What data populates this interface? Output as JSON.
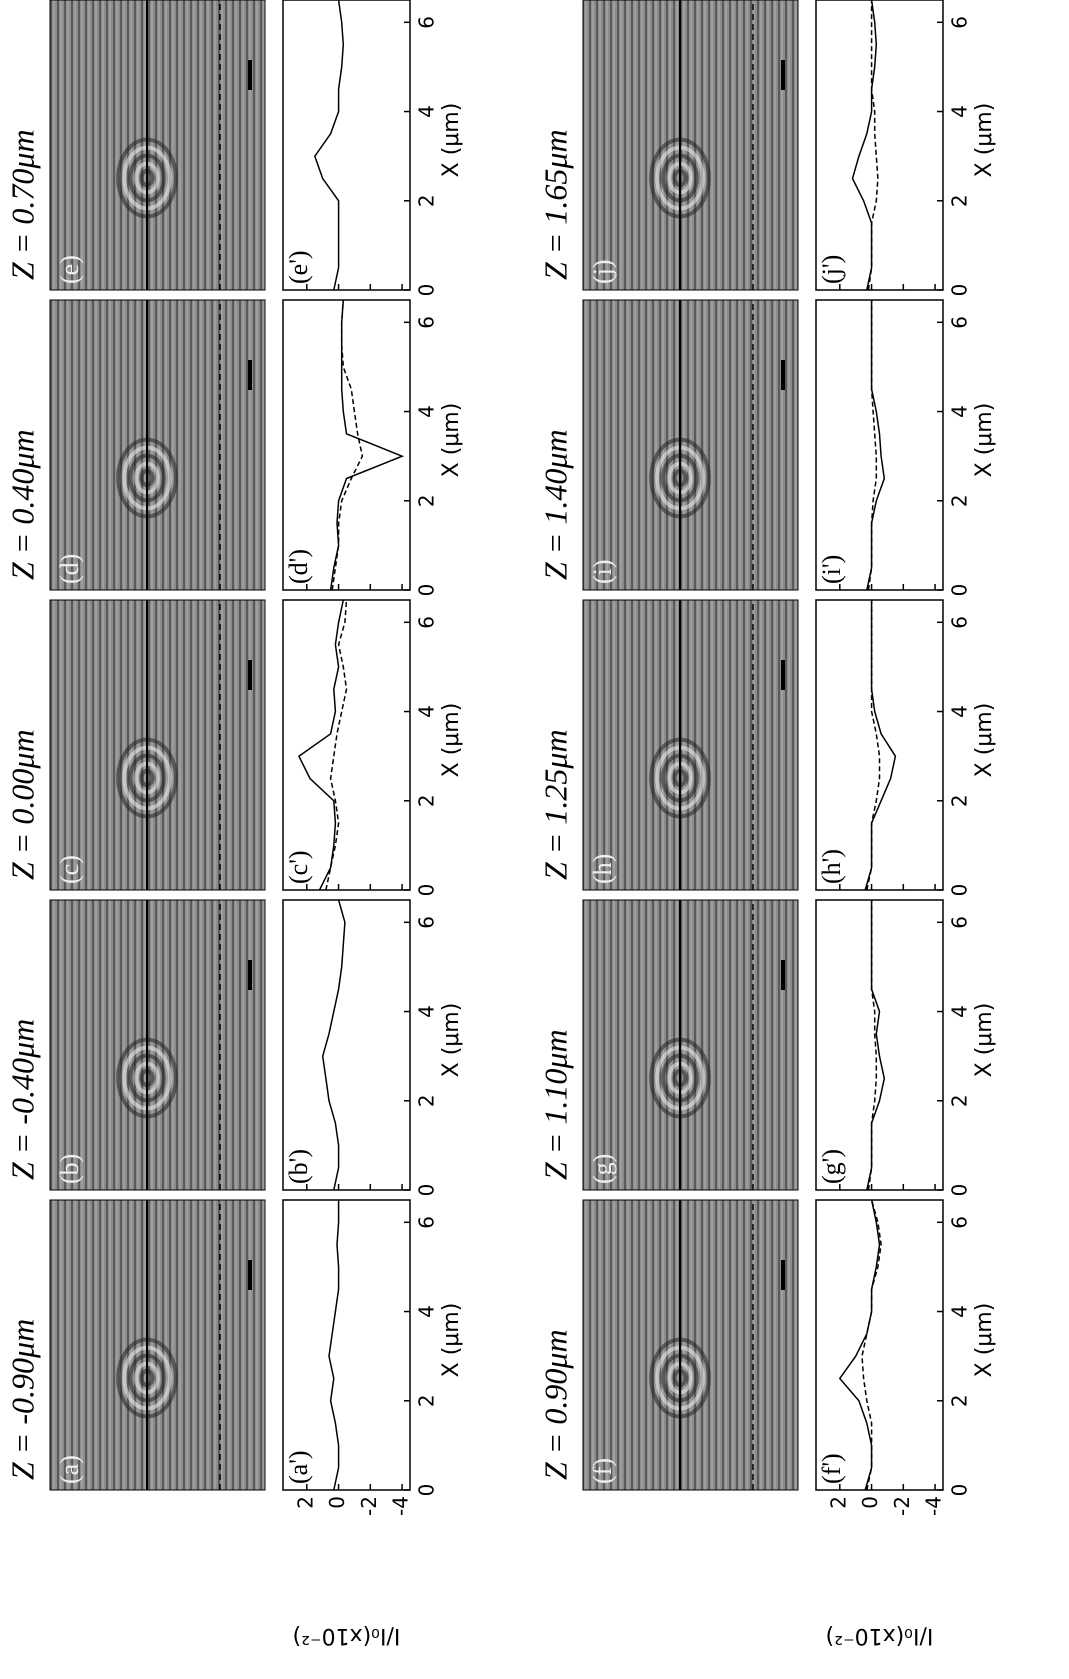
{
  "chart_data": [
    {
      "type": "line",
      "title": "Z = -0.90μm",
      "image_label": "(a)",
      "plot_label": "(a')",
      "xlabel": "X (μm)",
      "ylabel": "I/I₀(x10⁻²)",
      "x": [
        0,
        0.5,
        1,
        1.5,
        2,
        2.5,
        3,
        3.5,
        4,
        4.5,
        5,
        5.5,
        6,
        6.5
      ],
      "xlim": [
        0,
        6.5
      ],
      "xticks": [
        0,
        2,
        4,
        6
      ],
      "ylim": [
        -4.5,
        3.5
      ],
      "yticks": [
        2,
        0,
        -2,
        -4
      ],
      "series": [
        {
          "color": "#000000",
          "style": "solid",
          "values": [
            0.3,
            0,
            0,
            0.2,
            0.5,
            0.3,
            0.6,
            0.4,
            0.2,
            0,
            0,
            0.1,
            0,
            0
          ]
        }
      ]
    },
    {
      "type": "line",
      "title": "Z = -0.40μm",
      "image_label": "(b)",
      "plot_label": "(b')",
      "xlabel": "X (μm)",
      "x": [
        0,
        0.5,
        1,
        1.5,
        2,
        2.5,
        3,
        3.5,
        4,
        4.5,
        5,
        5.5,
        6,
        6.5
      ],
      "xlim": [
        0,
        6.5
      ],
      "xticks": [
        0,
        2,
        4,
        6
      ],
      "ylim": [
        -4.5,
        3.5
      ],
      "yticks": [
        2,
        0,
        -2,
        -4
      ],
      "series": [
        {
          "color": "#000000",
          "style": "solid",
          "values": [
            0.3,
            0,
            0,
            0.2,
            0.6,
            0.8,
            1.0,
            0.6,
            0.3,
            0,
            -0.2,
            -0.3,
            -0.4,
            0
          ]
        }
      ]
    },
    {
      "type": "line",
      "title": "Z = 0.00μm",
      "image_label": "(c)",
      "plot_label": "(c')",
      "xlabel": "X (μm)",
      "x": [
        0,
        0.5,
        1,
        1.5,
        2,
        2.5,
        3,
        3.5,
        4,
        4.5,
        5,
        5.5,
        6,
        6.5
      ],
      "xlim": [
        0,
        6.5
      ],
      "xticks": [
        0,
        2,
        4,
        6
      ],
      "ylim": [
        -4.5,
        3.5
      ],
      "yticks": [
        2,
        0,
        -2,
        -4
      ],
      "series": [
        {
          "color": "#000000",
          "style": "solid",
          "values": [
            1.2,
            0.5,
            0.3,
            0.2,
            0.3,
            1.8,
            2.5,
            0.5,
            0.2,
            0.3,
            0,
            0.2,
            0,
            -0.3
          ]
        },
        {
          "color": "#000000",
          "style": "dashed",
          "values": [
            0.8,
            0.5,
            0.2,
            0,
            0.2,
            0.5,
            0.3,
            0.1,
            -0.2,
            -0.5,
            -0.3,
            0,
            -0.4,
            -0.5
          ]
        }
      ]
    },
    {
      "type": "line",
      "title": "Z = 0.40μm",
      "image_label": "(d)",
      "plot_label": "(d')",
      "xlabel": "X (μm)",
      "x": [
        0,
        0.5,
        1,
        1.5,
        2,
        2.5,
        3,
        3.5,
        4,
        4.5,
        5,
        5.5,
        6,
        6.5
      ],
      "xlim": [
        0,
        6.5
      ],
      "xticks": [
        0,
        2,
        4,
        6
      ],
      "ylim": [
        -4.5,
        3.5
      ],
      "yticks": [
        2,
        0,
        -2,
        -4
      ],
      "series": [
        {
          "color": "#000000",
          "style": "solid",
          "values": [
            0.5,
            0.3,
            0,
            0.1,
            0,
            -0.5,
            -4,
            -0.5,
            -0.3,
            -0.2,
            -0.2,
            -0.2,
            -0.2,
            -0.3
          ]
        },
        {
          "color": "#000000",
          "style": "dashed",
          "values": [
            0.4,
            0.2,
            0,
            0,
            -0.2,
            -0.8,
            -1.5,
            -1.2,
            -1,
            -0.8,
            -0.3,
            -0.2,
            -0.2,
            -0.3
          ]
        }
      ]
    },
    {
      "type": "line",
      "title": "Z = 0.70μm",
      "image_label": "(e)",
      "plot_label": "(e')",
      "xlabel": "X (μm)",
      "x": [
        0,
        0.5,
        1,
        1.5,
        2,
        2.5,
        3,
        3.5,
        4,
        4.5,
        5,
        5.5,
        6,
        6.5
      ],
      "xlim": [
        0,
        6.5
      ],
      "xticks": [
        0,
        2,
        4,
        6
      ],
      "ylim": [
        -4.5,
        3.5
      ],
      "yticks": [
        2,
        0,
        -2,
        -4
      ],
      "series": [
        {
          "color": "#000000",
          "style": "solid",
          "values": [
            0.3,
            0,
            0,
            0,
            0,
            1.0,
            1.5,
            0.5,
            0,
            0,
            -0.2,
            -0.3,
            -0.2,
            0
          ]
        }
      ]
    },
    {
      "type": "line",
      "title": "Z = 0.90μm",
      "image_label": "(f)",
      "plot_label": "(f')",
      "xlabel": "X (μm)",
      "ylabel": "I/I₀(x10⁻²)",
      "x": [
        0,
        0.5,
        1,
        1.5,
        2,
        2.5,
        3,
        3.5,
        4,
        4.5,
        5,
        5.5,
        6,
        6.5
      ],
      "xlim": [
        0,
        6.5
      ],
      "xticks": [
        0,
        2,
        4,
        6
      ],
      "ylim": [
        -4.5,
        3.5
      ],
      "yticks": [
        2,
        0,
        -2,
        -4
      ],
      "series": [
        {
          "color": "#000000",
          "style": "solid",
          "values": [
            0.4,
            0,
            0,
            0.3,
            0.8,
            2.0,
            1.0,
            0.3,
            0,
            0,
            -0.3,
            -0.5,
            -0.3,
            0
          ]
        },
        {
          "color": "#000000",
          "style": "dashed",
          "values": [
            0.3,
            0,
            0,
            0,
            0.3,
            0.5,
            0.6,
            0.3,
            0,
            0,
            -0.4,
            -0.6,
            -0.4,
            0
          ]
        }
      ]
    },
    {
      "type": "line",
      "title": "Z = 1.10μm",
      "image_label": "(g)",
      "plot_label": "(g')",
      "xlabel": "X (μm)",
      "x": [
        0,
        0.5,
        1,
        1.5,
        2,
        2.5,
        3,
        3.5,
        4,
        4.5,
        5,
        5.5,
        6,
        6.5
      ],
      "xlim": [
        0,
        6.5
      ],
      "xticks": [
        0,
        2,
        4,
        6
      ],
      "ylim": [
        -4.5,
        3.5
      ],
      "yticks": [
        2,
        0,
        -2,
        -4
      ],
      "series": [
        {
          "color": "#000000",
          "style": "solid",
          "values": [
            0.3,
            0,
            0,
            0,
            -0.5,
            -0.8,
            -0.5,
            -0.3,
            -0.5,
            0,
            0,
            0,
            0,
            0
          ]
        },
        {
          "color": "#000000",
          "style": "dashed",
          "values": [
            0.2,
            0,
            0,
            0,
            -0.2,
            -0.3,
            -0.3,
            -0.2,
            -0.2,
            0,
            0,
            0,
            0,
            0
          ]
        }
      ]
    },
    {
      "type": "line",
      "title": "Z = 1.25μm",
      "image_label": "(h)",
      "plot_label": "(h')",
      "xlabel": "X (μm)",
      "x": [
        0,
        0.5,
        1,
        1.5,
        2,
        2.5,
        3,
        3.5,
        4,
        4.5,
        5,
        5.5,
        6,
        6.5
      ],
      "xlim": [
        0,
        6.5
      ],
      "xticks": [
        0,
        2,
        4,
        6
      ],
      "ylim": [
        -4.5,
        3.5
      ],
      "yticks": [
        2,
        0,
        -2,
        -4
      ],
      "series": [
        {
          "color": "#000000",
          "style": "solid",
          "values": [
            0.4,
            0,
            0,
            0,
            -0.6,
            -1.2,
            -1.5,
            -0.6,
            -0.2,
            0,
            0,
            0,
            0,
            0
          ]
        },
        {
          "color": "#000000",
          "style": "dashed",
          "values": [
            0.3,
            0,
            0,
            0,
            -0.3,
            -0.5,
            -0.5,
            -0.3,
            0,
            0,
            0,
            0,
            0,
            0
          ]
        }
      ]
    },
    {
      "type": "line",
      "title": "Z = 1.40μm",
      "image_label": "(i)",
      "plot_label": "(i')",
      "xlabel": "X (μm)",
      "x": [
        0,
        0.5,
        1,
        1.5,
        2,
        2.5,
        3,
        3.5,
        4,
        4.5,
        5,
        5.5,
        6,
        6.5
      ],
      "xlim": [
        0,
        6.5
      ],
      "xticks": [
        0,
        2,
        4,
        6
      ],
      "ylim": [
        -4.5,
        3.5
      ],
      "yticks": [
        2,
        0,
        -2,
        -4
      ],
      "series": [
        {
          "color": "#000000",
          "style": "solid",
          "values": [
            0.3,
            0,
            0,
            0,
            -0.3,
            -0.8,
            -0.6,
            -0.5,
            -0.3,
            0,
            0,
            0,
            0,
            0
          ]
        },
        {
          "color": "#000000",
          "style": "dashed",
          "values": [
            0.2,
            0,
            0,
            0,
            -0.1,
            -0.3,
            -0.3,
            -0.2,
            -0.1,
            0,
            0,
            0,
            0,
            0
          ]
        }
      ]
    },
    {
      "type": "line",
      "title": "Z = 1.65μm",
      "image_label": "(j)",
      "plot_label": "(j')",
      "xlabel": "X (μm)",
      "x": [
        0,
        0.5,
        1,
        1.5,
        2,
        2.5,
        3,
        3.5,
        4,
        4.5,
        5,
        5.5,
        6,
        6.5
      ],
      "xlim": [
        0,
        6.5
      ],
      "xticks": [
        0,
        2,
        4,
        6
      ],
      "ylim": [
        -4.5,
        3.5
      ],
      "yticks": [
        2,
        0,
        -2,
        -4
      ],
      "series": [
        {
          "color": "#000000",
          "style": "solid",
          "values": [
            0.3,
            0,
            0,
            0,
            0.5,
            1.2,
            0.8,
            0.3,
            0,
            0,
            -0.2,
            -0.3,
            -0.2,
            0
          ]
        },
        {
          "color": "#000000",
          "style": "dashed",
          "values": [
            0.2,
            0,
            0,
            0,
            -0.3,
            -0.4,
            -0.3,
            -0.2,
            -0.2,
            0,
            0,
            0,
            0,
            0
          ]
        }
      ]
    }
  ]
}
